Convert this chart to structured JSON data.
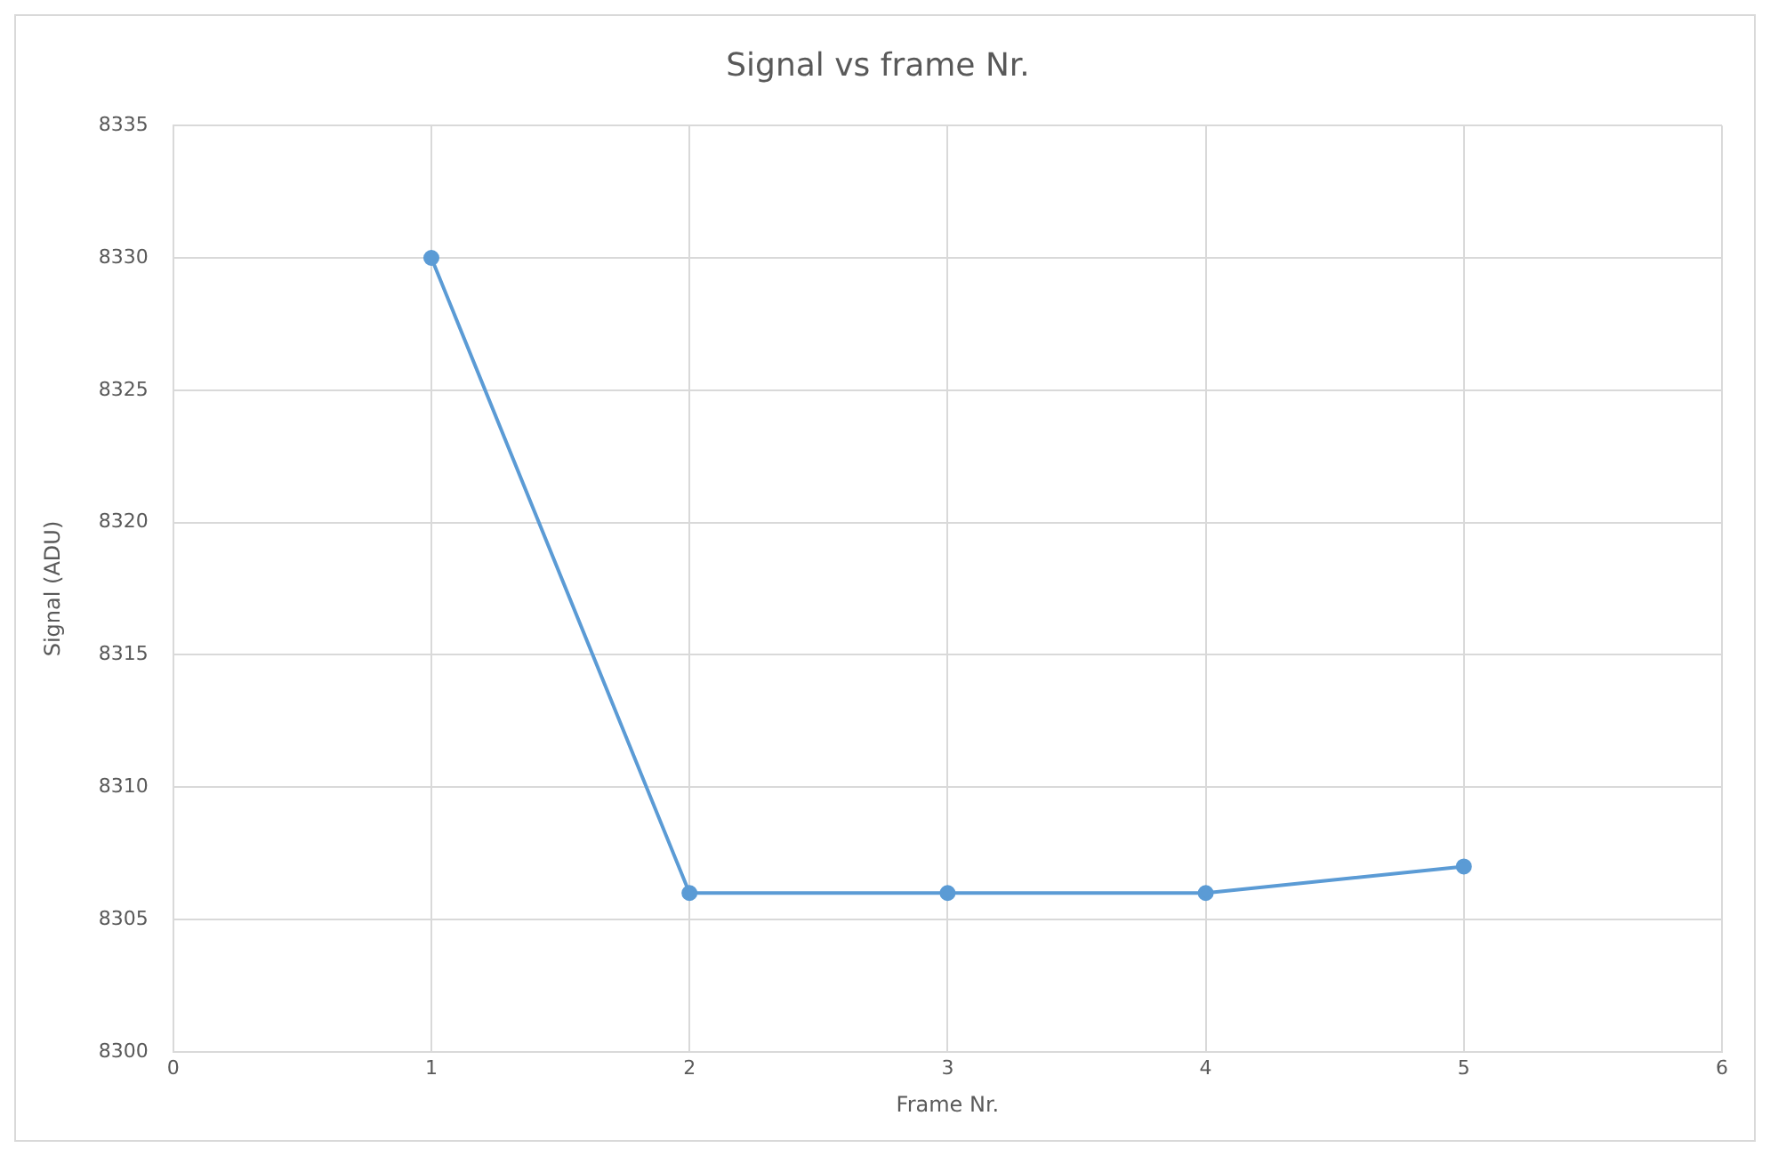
{
  "chart_data": {
    "type": "line",
    "title": "Signal vs frame Nr.",
    "xlabel": "Frame Nr.",
    "ylabel": "Signal (ADU)",
    "x": [
      1,
      2,
      3,
      4,
      5
    ],
    "series": [
      {
        "color": "#5b9bd5",
        "values": [
          8330,
          8306,
          8306,
          8306,
          8307
        ]
      }
    ],
    "xlim": [
      0,
      6
    ],
    "xticks": [
      0,
      1,
      2,
      3,
      4,
      5,
      6
    ],
    "ylim": [
      8300,
      8335
    ],
    "yticks": [
      8300,
      8305,
      8310,
      8315,
      8320,
      8325,
      8330,
      8335
    ],
    "grid": true,
    "legend": false,
    "marker": "circle",
    "line_style": "solid"
  }
}
